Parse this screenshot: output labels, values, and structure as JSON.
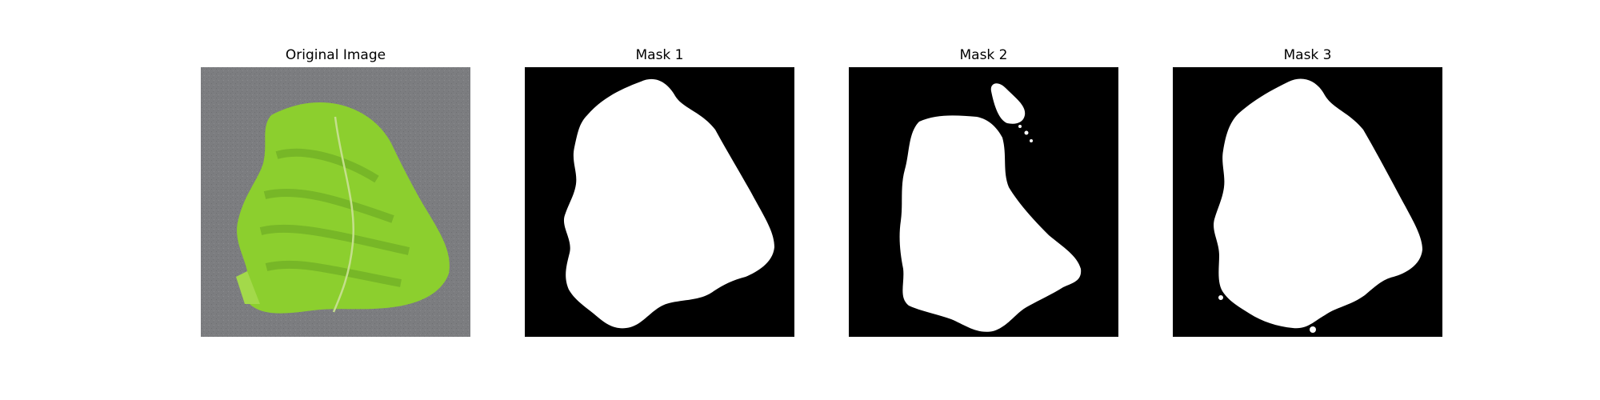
{
  "panels": [
    {
      "title": "Original Image",
      "kind": "photo"
    },
    {
      "title": "Mask 1",
      "kind": "mask"
    },
    {
      "title": "Mask 2",
      "kind": "mask"
    },
    {
      "title": "Mask 3",
      "kind": "mask"
    }
  ],
  "colors": {
    "mask_background": "#000000",
    "mask_foreground": "#ffffff",
    "photo_background": "#7c7d80",
    "leaf_main": "#8ccf2e",
    "leaf_dark": "#5e9a1f",
    "leaf_vein": "#c4df8c"
  }
}
